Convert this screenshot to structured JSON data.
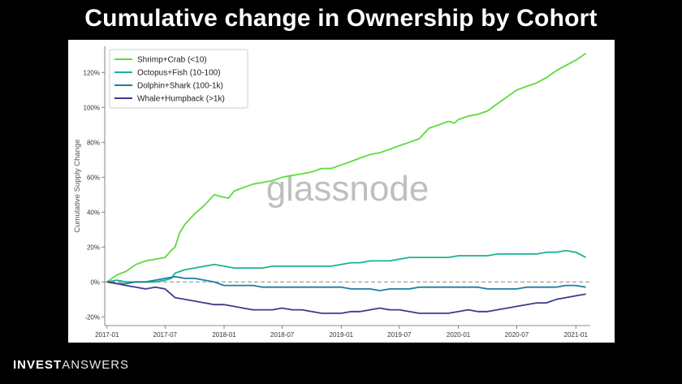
{
  "title": "Cumulative change in Ownership by Cohort",
  "watermark": "glassnode",
  "brand": {
    "part1": "INVEST",
    "part2": "ANSWERS"
  },
  "chart_data": {
    "type": "line",
    "title": "Cumulative change in Ownership by Cohort",
    "xlabel": "",
    "ylabel": "Cumulative Supply Change",
    "x_ticks": [
      "2017-01",
      "2017-07",
      "2018-01",
      "2018-07",
      "2019-01",
      "2019-07",
      "2020-01",
      "2020-07",
      "2021-01"
    ],
    "y_ticks": [
      "-20%",
      "0%",
      "20%",
      "40%",
      "60%",
      "80%",
      "100%",
      "120%"
    ],
    "y_tick_values": [
      -20,
      0,
      20,
      40,
      60,
      80,
      100,
      120
    ],
    "ylim": [
      -25,
      135
    ],
    "xlim": [
      "2016-12-25",
      "2021-02-15"
    ],
    "grid": false,
    "legend_position": "top-left",
    "reference_line": {
      "y": 0,
      "style": "dashed",
      "color": "#888888"
    },
    "series": [
      {
        "name": "Shrimp+Crab (<10)",
        "color": "#5ddc3a",
        "points": [
          [
            "2017-01-01",
            0
          ],
          [
            "2017-02-01",
            4
          ],
          [
            "2017-03-01",
            6
          ],
          [
            "2017-04-01",
            10
          ],
          [
            "2017-05-01",
            12
          ],
          [
            "2017-06-01",
            13
          ],
          [
            "2017-07-01",
            14
          ],
          [
            "2017-07-20",
            18
          ],
          [
            "2017-08-01",
            20
          ],
          [
            "2017-08-15",
            28
          ],
          [
            "2017-09-01",
            33
          ],
          [
            "2017-10-01",
            39
          ],
          [
            "2017-11-01",
            44
          ],
          [
            "2017-12-01",
            50
          ],
          [
            "2017-12-20",
            49
          ],
          [
            "2018-01-15",
            48
          ],
          [
            "2018-02-01",
            52
          ],
          [
            "2018-03-01",
            54
          ],
          [
            "2018-04-01",
            56
          ],
          [
            "2018-05-01",
            57
          ],
          [
            "2018-06-01",
            58
          ],
          [
            "2018-07-01",
            60
          ],
          [
            "2018-08-01",
            61
          ],
          [
            "2018-09-01",
            62
          ],
          [
            "2018-10-01",
            63
          ],
          [
            "2018-11-01",
            65
          ],
          [
            "2018-12-01",
            65
          ],
          [
            "2019-01-01",
            67
          ],
          [
            "2019-02-01",
            69
          ],
          [
            "2019-03-01",
            71
          ],
          [
            "2019-04-01",
            73
          ],
          [
            "2019-05-01",
            74
          ],
          [
            "2019-06-01",
            76
          ],
          [
            "2019-07-01",
            78
          ],
          [
            "2019-08-01",
            80
          ],
          [
            "2019-09-01",
            82
          ],
          [
            "2019-10-01",
            88
          ],
          [
            "2019-11-01",
            90
          ],
          [
            "2019-12-01",
            92
          ],
          [
            "2019-12-20",
            91
          ],
          [
            "2020-01-01",
            93
          ],
          [
            "2020-02-01",
            95
          ],
          [
            "2020-03-01",
            96
          ],
          [
            "2020-04-01",
            98
          ],
          [
            "2020-05-01",
            102
          ],
          [
            "2020-06-01",
            106
          ],
          [
            "2020-07-01",
            110
          ],
          [
            "2020-08-01",
            112
          ],
          [
            "2020-09-01",
            114
          ],
          [
            "2020-10-01",
            117
          ],
          [
            "2020-11-01",
            121
          ],
          [
            "2020-12-01",
            124
          ],
          [
            "2021-01-01",
            127
          ],
          [
            "2021-02-01",
            131
          ]
        ]
      },
      {
        "name": "Octopus+Fish (10-100)",
        "color": "#17b394",
        "points": [
          [
            "2017-01-01",
            0
          ],
          [
            "2017-02-01",
            1
          ],
          [
            "2017-03-01",
            0
          ],
          [
            "2017-04-01",
            0
          ],
          [
            "2017-05-01",
            0
          ],
          [
            "2017-06-01",
            0
          ],
          [
            "2017-07-01",
            1
          ],
          [
            "2017-07-20",
            2
          ],
          [
            "2017-08-01",
            5
          ],
          [
            "2017-09-01",
            7
          ],
          [
            "2017-10-01",
            8
          ],
          [
            "2017-11-01",
            9
          ],
          [
            "2017-12-01",
            10
          ],
          [
            "2018-01-01",
            9
          ],
          [
            "2018-02-01",
            8
          ],
          [
            "2018-03-01",
            8
          ],
          [
            "2018-04-01",
            8
          ],
          [
            "2018-05-01",
            8
          ],
          [
            "2018-06-01",
            9
          ],
          [
            "2018-07-01",
            9
          ],
          [
            "2018-08-01",
            9
          ],
          [
            "2018-09-01",
            9
          ],
          [
            "2018-10-01",
            9
          ],
          [
            "2018-11-01",
            9
          ],
          [
            "2018-12-01",
            9
          ],
          [
            "2019-01-01",
            10
          ],
          [
            "2019-02-01",
            11
          ],
          [
            "2019-03-01",
            11
          ],
          [
            "2019-04-01",
            12
          ],
          [
            "2019-05-01",
            12
          ],
          [
            "2019-06-01",
            12
          ],
          [
            "2019-07-01",
            13
          ],
          [
            "2019-08-01",
            14
          ],
          [
            "2019-09-01",
            14
          ],
          [
            "2019-10-01",
            14
          ],
          [
            "2019-11-01",
            14
          ],
          [
            "2019-12-01",
            14
          ],
          [
            "2020-01-01",
            15
          ],
          [
            "2020-02-01",
            15
          ],
          [
            "2020-03-01",
            15
          ],
          [
            "2020-04-01",
            15
          ],
          [
            "2020-05-01",
            16
          ],
          [
            "2020-06-01",
            16
          ],
          [
            "2020-07-01",
            16
          ],
          [
            "2020-08-01",
            16
          ],
          [
            "2020-09-01",
            16
          ],
          [
            "2020-10-01",
            17
          ],
          [
            "2020-11-01",
            17
          ],
          [
            "2020-12-01",
            18
          ],
          [
            "2021-01-01",
            17
          ],
          [
            "2021-02-01",
            14
          ]
        ]
      },
      {
        "name": "Dolphin+Shark (100-1k)",
        "color": "#1d7ea0",
        "points": [
          [
            "2017-01-01",
            0
          ],
          [
            "2017-02-01",
            -1
          ],
          [
            "2017-03-01",
            -1
          ],
          [
            "2017-04-01",
            0
          ],
          [
            "2017-05-01",
            0
          ],
          [
            "2017-06-01",
            1
          ],
          [
            "2017-07-01",
            2
          ],
          [
            "2017-08-01",
            3
          ],
          [
            "2017-09-01",
            2
          ],
          [
            "2017-10-01",
            2
          ],
          [
            "2017-11-01",
            1
          ],
          [
            "2017-12-01",
            0
          ],
          [
            "2018-01-01",
            -2
          ],
          [
            "2018-02-01",
            -2
          ],
          [
            "2018-03-01",
            -2
          ],
          [
            "2018-04-01",
            -2
          ],
          [
            "2018-05-01",
            -3
          ],
          [
            "2018-06-01",
            -3
          ],
          [
            "2018-07-01",
            -3
          ],
          [
            "2018-08-01",
            -3
          ],
          [
            "2018-09-01",
            -3
          ],
          [
            "2018-10-01",
            -3
          ],
          [
            "2018-11-01",
            -3
          ],
          [
            "2018-12-01",
            -3
          ],
          [
            "2019-01-01",
            -3
          ],
          [
            "2019-02-01",
            -4
          ],
          [
            "2019-03-01",
            -4
          ],
          [
            "2019-04-01",
            -4
          ],
          [
            "2019-05-01",
            -5
          ],
          [
            "2019-06-01",
            -4
          ],
          [
            "2019-07-01",
            -4
          ],
          [
            "2019-08-01",
            -4
          ],
          [
            "2019-09-01",
            -3
          ],
          [
            "2019-10-01",
            -3
          ],
          [
            "2019-11-01",
            -3
          ],
          [
            "2019-12-01",
            -3
          ],
          [
            "2020-01-01",
            -3
          ],
          [
            "2020-02-01",
            -3
          ],
          [
            "2020-03-01",
            -3
          ],
          [
            "2020-04-01",
            -4
          ],
          [
            "2020-05-01",
            -4
          ],
          [
            "2020-06-01",
            -4
          ],
          [
            "2020-07-01",
            -4
          ],
          [
            "2020-08-01",
            -3
          ],
          [
            "2020-09-01",
            -3
          ],
          [
            "2020-10-01",
            -3
          ],
          [
            "2020-11-01",
            -3
          ],
          [
            "2020-12-01",
            -2
          ],
          [
            "2021-01-01",
            -2
          ],
          [
            "2021-02-01",
            -3
          ]
        ]
      },
      {
        "name": "Whale+Humpback (>1k)",
        "color": "#3d3a8f",
        "points": [
          [
            "2017-01-01",
            0
          ],
          [
            "2017-02-01",
            -1
          ],
          [
            "2017-03-01",
            -2
          ],
          [
            "2017-04-01",
            -3
          ],
          [
            "2017-05-01",
            -4
          ],
          [
            "2017-06-01",
            -3
          ],
          [
            "2017-07-01",
            -4
          ],
          [
            "2017-08-01",
            -9
          ],
          [
            "2017-09-01",
            -10
          ],
          [
            "2017-10-01",
            -11
          ],
          [
            "2017-11-01",
            -12
          ],
          [
            "2017-12-01",
            -13
          ],
          [
            "2018-01-01",
            -13
          ],
          [
            "2018-02-01",
            -14
          ],
          [
            "2018-03-01",
            -15
          ],
          [
            "2018-04-01",
            -16
          ],
          [
            "2018-05-01",
            -16
          ],
          [
            "2018-06-01",
            -16
          ],
          [
            "2018-07-01",
            -15
          ],
          [
            "2018-08-01",
            -16
          ],
          [
            "2018-09-01",
            -16
          ],
          [
            "2018-10-01",
            -17
          ],
          [
            "2018-11-01",
            -18
          ],
          [
            "2018-12-01",
            -18
          ],
          [
            "2019-01-01",
            -18
          ],
          [
            "2019-02-01",
            -17
          ],
          [
            "2019-03-01",
            -17
          ],
          [
            "2019-04-01",
            -16
          ],
          [
            "2019-05-01",
            -15
          ],
          [
            "2019-06-01",
            -16
          ],
          [
            "2019-07-01",
            -16
          ],
          [
            "2019-08-01",
            -17
          ],
          [
            "2019-09-01",
            -18
          ],
          [
            "2019-10-01",
            -18
          ],
          [
            "2019-11-01",
            -18
          ],
          [
            "2019-12-01",
            -18
          ],
          [
            "2020-01-01",
            -17
          ],
          [
            "2020-02-01",
            -16
          ],
          [
            "2020-03-01",
            -17
          ],
          [
            "2020-04-01",
            -17
          ],
          [
            "2020-05-01",
            -16
          ],
          [
            "2020-06-01",
            -15
          ],
          [
            "2020-07-01",
            -14
          ],
          [
            "2020-08-01",
            -13
          ],
          [
            "2020-09-01",
            -12
          ],
          [
            "2020-10-01",
            -12
          ],
          [
            "2020-11-01",
            -10
          ],
          [
            "2020-12-01",
            -9
          ],
          [
            "2021-01-01",
            -8
          ],
          [
            "2021-02-01",
            -7
          ]
        ]
      }
    ]
  }
}
